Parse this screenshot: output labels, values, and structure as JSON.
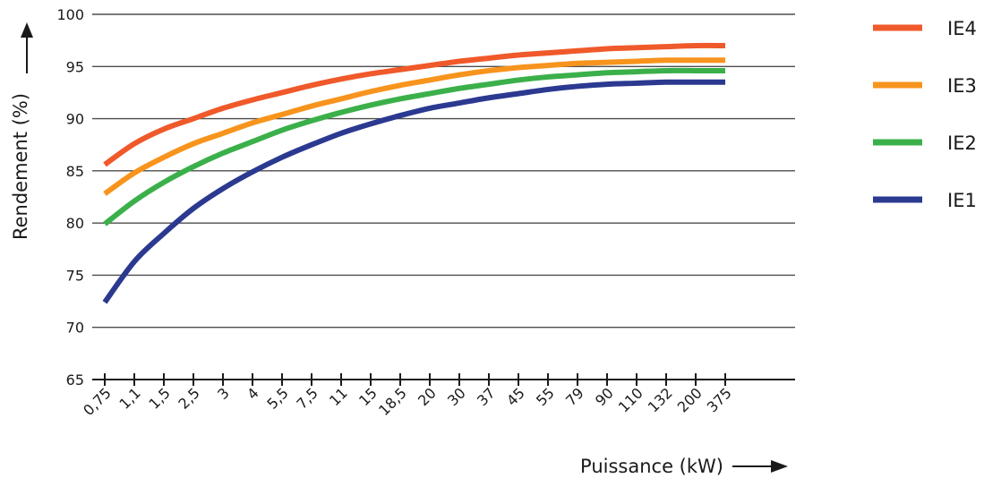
{
  "chart_data": {
    "type": "line",
    "xlabel": "Puissance (kW)",
    "ylabel": "Rendement (%)",
    "ylim": [
      65,
      100
    ],
    "yticks": [
      65,
      70,
      75,
      80,
      85,
      90,
      95,
      100
    ],
    "categories": [
      "0,75",
      "1,1",
      "1,5",
      "2,5",
      "3",
      "4",
      "5,5",
      "7,5",
      "11",
      "15",
      "18,5",
      "20",
      "30",
      "37",
      "45",
      "55",
      "79",
      "90",
      "110",
      "132",
      "200",
      "375"
    ],
    "grid": "horizontal",
    "legend_position": "right",
    "series": [
      {
        "name": "IE4",
        "color": "#f0592a",
        "values": [
          85.6,
          87.6,
          89.0,
          90.0,
          91.0,
          91.8,
          92.5,
          93.2,
          93.8,
          94.3,
          94.7,
          95.1,
          95.5,
          95.8,
          96.1,
          96.3,
          96.5,
          96.7,
          96.8,
          96.9,
          97.0,
          97.0
        ]
      },
      {
        "name": "IE3",
        "color": "#f7941d",
        "values": [
          82.8,
          84.8,
          86.3,
          87.6,
          88.6,
          89.6,
          90.4,
          91.2,
          91.9,
          92.6,
          93.2,
          93.7,
          94.2,
          94.6,
          94.9,
          95.1,
          95.3,
          95.4,
          95.5,
          95.6,
          95.6,
          95.6
        ]
      },
      {
        "name": "IE2",
        "color": "#3bb04a",
        "values": [
          79.9,
          82.1,
          83.9,
          85.4,
          86.7,
          87.8,
          88.9,
          89.8,
          90.6,
          91.3,
          91.9,
          92.4,
          92.9,
          93.3,
          93.7,
          94.0,
          94.2,
          94.4,
          94.5,
          94.6,
          94.6,
          94.6
        ]
      },
      {
        "name": "IE1",
        "color": "#2b3990",
        "values": [
          72.4,
          76.3,
          79.0,
          81.4,
          83.3,
          84.9,
          86.3,
          87.5,
          88.6,
          89.5,
          90.3,
          91.0,
          91.5,
          92.0,
          92.4,
          92.8,
          93.1,
          93.3,
          93.4,
          93.5,
          93.5,
          93.5
        ]
      }
    ]
  }
}
